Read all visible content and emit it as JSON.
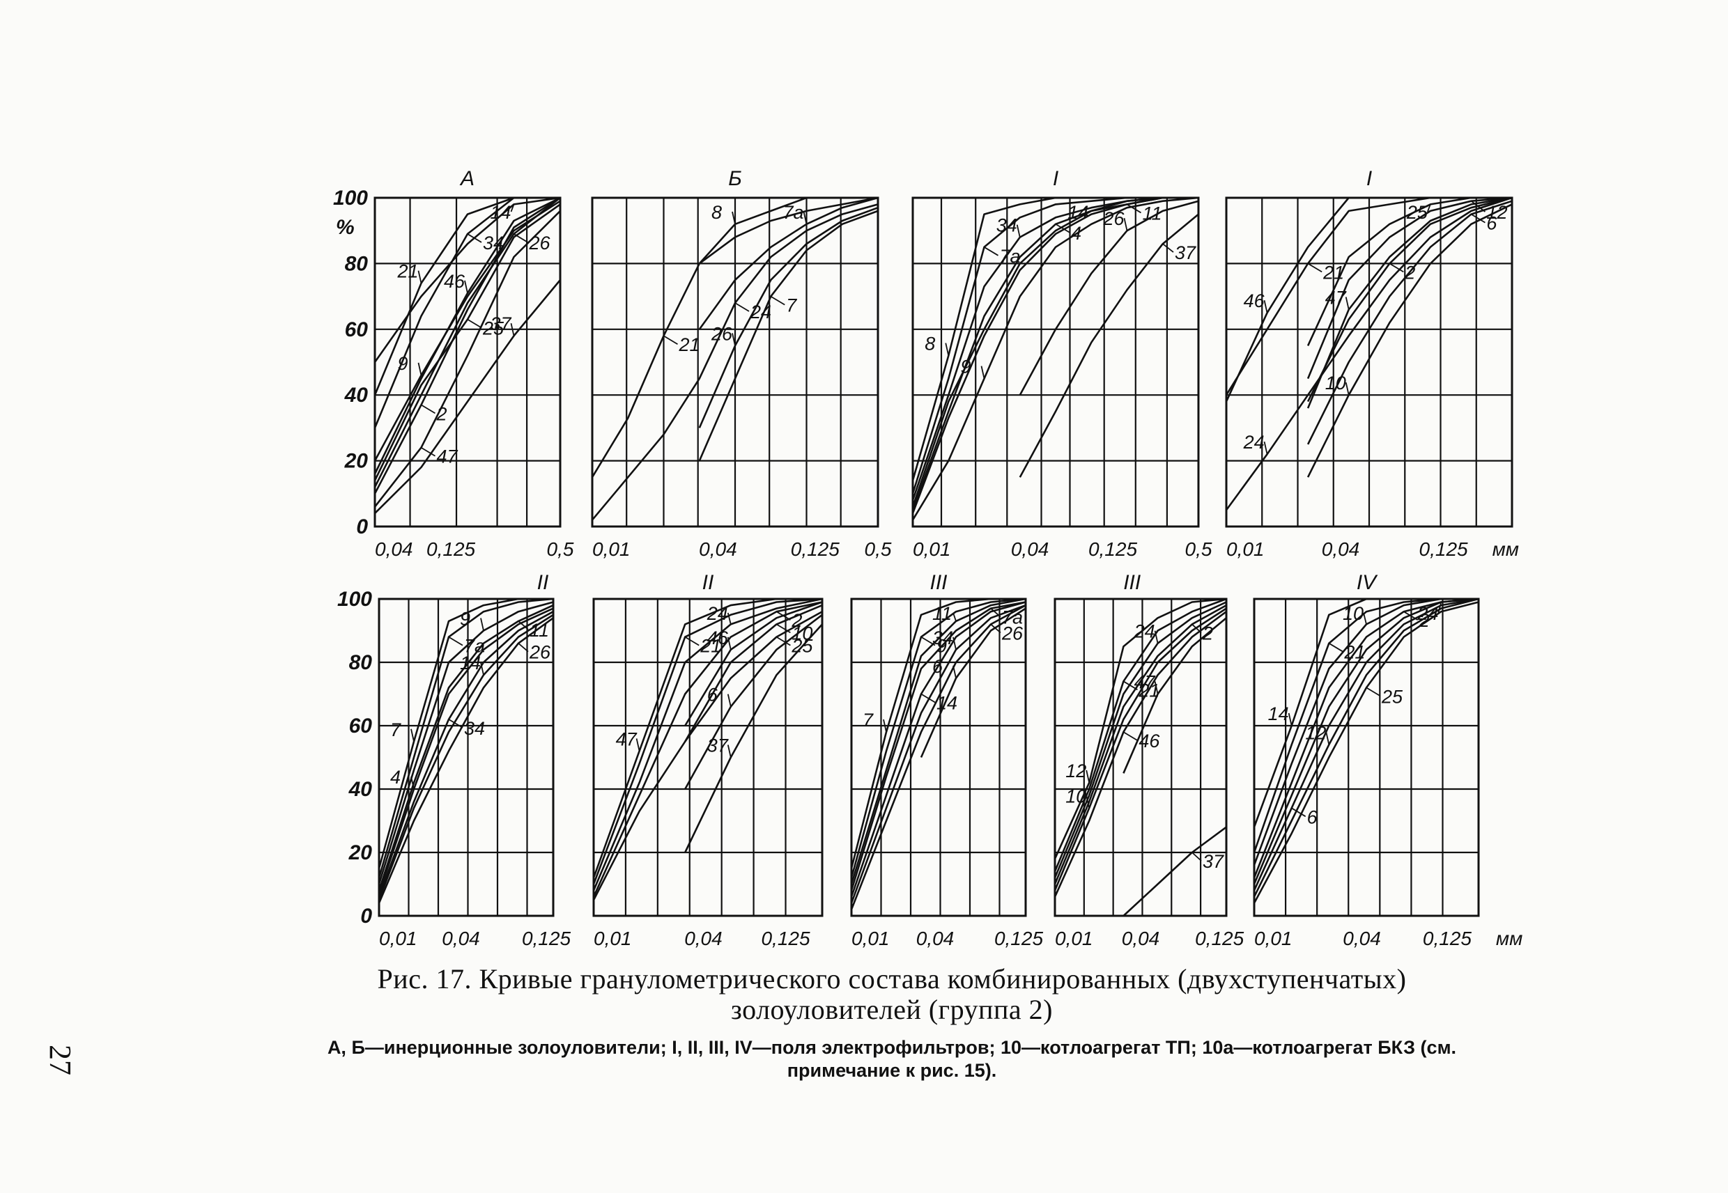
{
  "caption": "Рис. 17. Кривые гранулометрического состава комбинированных (двухступенчатых) золоуловителей (группа 2)",
  "legend_note": "А, Б—инерционные золоуловители; I, II, III, IV—поля электрофильтров; 10—котлоагрегат ТП; 10а—котлоагрегат БКЗ (см. примечание к рис. 15).",
  "page_number": "27",
  "y_tick_labels": [
    "0",
    "20",
    "40",
    "60",
    "80",
    "100"
  ],
  "y_unit": "%",
  "chart_data": [
    {
      "type": "line",
      "title": "А",
      "x_ticks": [
        "0,04",
        "0,125",
        "0,5"
      ],
      "ylim": [
        0,
        100
      ],
      "grid": true,
      "series": [
        {
          "name": "21",
          "values": [
            40,
            74,
            95,
            100,
            100
          ]
        },
        {
          "name": "34",
          "values": [
            30,
            64,
            89,
            100,
            100
          ]
        },
        {
          "name": "14",
          "values": [
            50,
            70,
            86,
            98,
            100
          ]
        },
        {
          "name": "2",
          "values": [
            10,
            37,
            66,
            91,
            100
          ]
        },
        {
          "name": "46",
          "values": [
            16,
            45,
            71,
            93,
            100
          ]
        },
        {
          "name": "26",
          "values": [
            12,
            40,
            68,
            89,
            100
          ]
        },
        {
          "name": "9",
          "values": [
            20,
            46,
            70,
            90,
            99
          ]
        },
        {
          "name": "25",
          "values": [
            14,
            43,
            63,
            88,
            98
          ]
        },
        {
          "name": "37",
          "values": [
            4,
            18,
            38,
            58,
            75
          ]
        },
        {
          "name": "47",
          "values": [
            6,
            24,
            52,
            82,
            96
          ]
        }
      ]
    },
    {
      "type": "line",
      "title": "Б",
      "x_ticks": [
        "0,01",
        "0,04",
        "0,125",
        "0,5"
      ],
      "ylim": [
        0,
        100
      ],
      "grid": true,
      "series": [
        {
          "name": "8",
          "values": [
            null,
            null,
            null,
            80,
            92,
            96,
            100,
            100,
            100
          ]
        },
        {
          "name": "21",
          "values": [
            15,
            33,
            58,
            80,
            88,
            93,
            96,
            98,
            100
          ]
        },
        {
          "name": "7а",
          "values": [
            null,
            null,
            null,
            60,
            75,
            85,
            92,
            97,
            100
          ]
        },
        {
          "name": "24",
          "values": [
            2,
            15,
            28,
            45,
            68,
            82,
            90,
            95,
            98
          ]
        },
        {
          "name": "26",
          "values": [
            null,
            null,
            null,
            30,
            55,
            75,
            86,
            93,
            97
          ]
        },
        {
          "name": "7",
          "values": [
            null,
            null,
            null,
            20,
            45,
            70,
            84,
            92,
            96
          ]
        }
      ]
    },
    {
      "type": "line",
      "title": "I",
      "x_ticks": [
        "0,01",
        "0,04",
        "0,125",
        "0,5"
      ],
      "ylim": [
        0,
        100
      ],
      "grid": true,
      "series": [
        {
          "name": "8",
          "values": [
            14,
            52,
            95,
            98,
            100,
            100,
            100,
            100,
            100
          ]
        },
        {
          "name": "7а",
          "values": [
            10,
            45,
            85,
            94,
            98,
            99,
            100,
            100,
            100
          ]
        },
        {
          "name": "34",
          "values": [
            8,
            40,
            73,
            88,
            94,
            97,
            99,
            100,
            100
          ]
        },
        {
          "name": "4",
          "values": [
            5,
            35,
            64,
            82,
            92,
            96,
            99,
            100,
            100
          ]
        },
        {
          "name": "14",
          "values": [
            6,
            38,
            60,
            80,
            90,
            96,
            98,
            100,
            100
          ]
        },
        {
          "name": "11",
          "values": [
            4,
            33,
            58,
            78,
            89,
            95,
            98,
            100,
            100
          ]
        },
        {
          "name": "26",
          "values": [
            null,
            null,
            null,
            40,
            60,
            77,
            90,
            96,
            99
          ]
        },
        {
          "name": "37",
          "values": [
            null,
            null,
            null,
            15,
            35,
            56,
            72,
            86,
            95
          ]
        },
        {
          "name": "9",
          "values": [
            2,
            20,
            45,
            70,
            85,
            92,
            97,
            99,
            100
          ]
        }
      ]
    },
    {
      "type": "line",
      "title": "I",
      "x_ticks": [
        "0,01",
        "0,04",
        "0,125"
      ],
      "x_unit": "мм",
      "ylim": [
        0,
        100
      ],
      "grid": true,
      "series": [
        {
          "name": "46",
          "values": [
            38,
            65,
            85,
            100,
            100,
            100,
            100,
            100
          ]
        },
        {
          "name": "21",
          "values": [
            40,
            60,
            80,
            96,
            98,
            100,
            100,
            100
          ]
        },
        {
          "name": "25",
          "values": [
            null,
            null,
            55,
            82,
            92,
            98,
            100,
            100
          ]
        },
        {
          "name": "12",
          "values": [
            null,
            null,
            45,
            75,
            88,
            96,
            99,
            100
          ]
        },
        {
          "name": "47",
          "values": [
            null,
            null,
            36,
            66,
            82,
            93,
            98,
            100
          ]
        },
        {
          "name": "2",
          "values": [
            null,
            null,
            38,
            63,
            80,
            92,
            97,
            100
          ]
        },
        {
          "name": "24",
          "values": [
            5,
            22,
            40,
            58,
            75,
            88,
            96,
            100
          ]
        },
        {
          "name": "6",
          "values": [
            null,
            null,
            25,
            50,
            70,
            85,
            95,
            99
          ]
        },
        {
          "name": "10",
          "values": [
            null,
            null,
            15,
            40,
            62,
            80,
            92,
            98
          ]
        }
      ]
    },
    {
      "type": "line",
      "title": "II",
      "x_ticks": [
        "0,01",
        "0,04",
        "0,125"
      ],
      "ylim": [
        0,
        100
      ],
      "grid": true,
      "series": [
        {
          "name": "7",
          "values": [
            15,
            55,
            93,
            98,
            100,
            100
          ]
        },
        {
          "name": "7а",
          "values": [
            12,
            50,
            88,
            96,
            99,
            100
          ]
        },
        {
          "name": "9",
          "values": [
            10,
            46,
            80,
            90,
            96,
            99
          ]
        },
        {
          "name": "11",
          "values": [
            8,
            42,
            72,
            86,
            93,
            98
          ]
        },
        {
          "name": "4",
          "values": [
            7,
            40,
            70,
            84,
            92,
            97
          ]
        },
        {
          "name": "34",
          "values": [
            6,
            36,
            62,
            80,
            90,
            96
          ]
        },
        {
          "name": "14",
          "values": [
            5,
            34,
            58,
            76,
            88,
            95
          ]
        },
        {
          "name": "26",
          "values": [
            4,
            30,
            52,
            72,
            86,
            94
          ]
        }
      ]
    },
    {
      "type": "line",
      "title": "II",
      "x_ticks": [
        "0,01",
        "0,04",
        "0,125"
      ],
      "ylim": [
        0,
        100
      ],
      "grid": true,
      "series": [
        {
          "name": "47",
          "values": [
            12,
            52,
            92,
            98,
            100,
            100
          ]
        },
        {
          "name": "21",
          "values": [
            10,
            48,
            88,
            95,
            99,
            100
          ]
        },
        {
          "name": "24",
          "values": [
            8,
            42,
            80,
            92,
            97,
            100
          ]
        },
        {
          "name": "2",
          "values": [
            6,
            38,
            70,
            88,
            96,
            99
          ]
        },
        {
          "name": "46",
          "values": [
            null,
            null,
            60,
            84,
            94,
            99
          ]
        },
        {
          "name": "10",
          "values": [
            null,
            null,
            55,
            80,
            92,
            98
          ]
        },
        {
          "name": "6",
          "values": [
            null,
            null,
            40,
            66,
            84,
            95
          ]
        },
        {
          "name": "25",
          "values": [
            5,
            33,
            55,
            75,
            88,
            96
          ]
        },
        {
          "name": "37",
          "values": [
            null,
            null,
            20,
            50,
            76,
            92
          ]
        }
      ]
    },
    {
      "type": "line",
      "title": "III",
      "x_ticks": [
        "0,01",
        "0,04",
        "0,125"
      ],
      "ylim": [
        0,
        100
      ],
      "grid": true,
      "series": [
        {
          "name": "7",
          "values": [
            15,
            58,
            95,
            99,
            100,
            100
          ]
        },
        {
          "name": "9",
          "values": [
            12,
            52,
            88,
            96,
            99,
            100
          ]
        },
        {
          "name": "11",
          "values": [
            10,
            46,
            82,
            93,
            98,
            100
          ]
        },
        {
          "name": "7а",
          "values": [
            8,
            44,
            78,
            90,
            97,
            99
          ]
        },
        {
          "name": "6",
          "values": [
            null,
            null,
            50,
            75,
            90,
            97
          ]
        },
        {
          "name": "14",
          "values": [
            6,
            38,
            70,
            88,
            96,
            99
          ]
        },
        {
          "name": "34",
          "values": [
            4,
            34,
            64,
            84,
            94,
            98
          ]
        },
        {
          "name": "26",
          "values": [
            2,
            30,
            58,
            80,
            92,
            98
          ]
        }
      ]
    },
    {
      "type": "line",
      "title": "III",
      "x_ticks": [
        "0,01",
        "0,04",
        "0,125"
      ],
      "ylim": [
        0,
        100
      ],
      "grid": true,
      "series": [
        {
          "name": "12",
          "values": [
            18,
            42,
            85,
            94,
            99,
            100
          ]
        },
        {
          "name": "21",
          "values": [
            14,
            40,
            74,
            90,
            96,
            100
          ]
        },
        {
          "name": "24",
          "values": [
            12,
            38,
            70,
            86,
            94,
            99
          ]
        },
        {
          "name": "2",
          "values": [
            10,
            36,
            66,
            82,
            92,
            98
          ]
        },
        {
          "name": "10",
          "values": [
            8,
            34,
            62,
            80,
            90,
            97
          ]
        },
        {
          "name": "46",
          "values": [
            6,
            30,
            58,
            76,
            88,
            96
          ]
        },
        {
          "name": "47",
          "values": [
            null,
            null,
            45,
            70,
            85,
            94
          ]
        },
        {
          "name": "37",
          "values": [
            null,
            null,
            0,
            10,
            20,
            28
          ]
        }
      ]
    },
    {
      "type": "line",
      "title": "IV",
      "x_ticks": [
        "0,01",
        "0,04",
        "0,125"
      ],
      "x_unit": "мм",
      "ylim": [
        0,
        100
      ],
      "grid": true,
      "series": [
        {
          "name": "14",
          "values": [
            28,
            60,
            95,
            100,
            100,
            100,
            100
          ]
        },
        {
          "name": "21",
          "values": [
            20,
            54,
            86,
            96,
            99,
            100,
            100
          ]
        },
        {
          "name": "10",
          "values": [
            16,
            48,
            78,
            92,
            98,
            100,
            100
          ]
        },
        {
          "name": "2",
          "values": [
            12,
            42,
            72,
            88,
            96,
            99,
            100
          ]
        },
        {
          "name": "24",
          "values": [
            10,
            38,
            66,
            84,
            94,
            99,
            100
          ]
        },
        {
          "name": "6",
          "values": [
            8,
            34,
            60,
            80,
            92,
            98,
            100
          ]
        },
        {
          "name": "12",
          "values": [
            6,
            30,
            54,
            76,
            90,
            97,
            100
          ]
        },
        {
          "name": "25",
          "values": [
            4,
            26,
            50,
            72,
            88,
            96,
            99
          ]
        }
      ]
    }
  ]
}
